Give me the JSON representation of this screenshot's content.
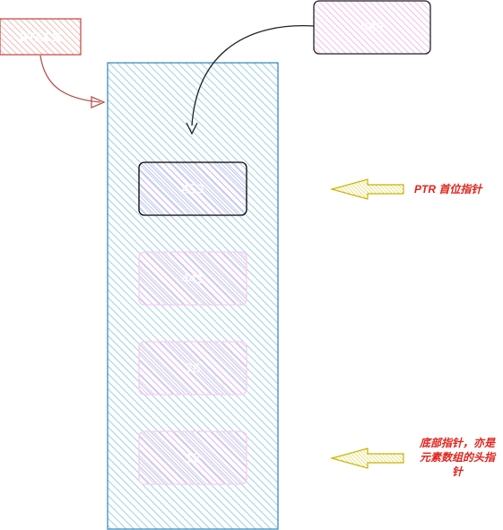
{
  "diagram": {
    "stack_label": "STACK",
    "new_item": "999",
    "stack_items": [
      "459",
      "441",
      "76",
      "12"
    ],
    "top_note": "PTR 首位指针",
    "bottom_note_lines": [
      "底部指针，亦是",
      "元素数组的头指",
      "针"
    ]
  },
  "colors": {
    "stack_label_fill": "#f8cecc",
    "stack_label_stroke": "#b85450",
    "arrow_red": "#b85450",
    "stack_fill": "#a5d6e8",
    "stack_stroke": "#3a8fbf",
    "item_fill": "#e6d0ff",
    "item_pink": "#f6c8f0",
    "item_border_active": "#000000",
    "item_border": "#f4d0f0",
    "pointer_fill": "#e8e060",
    "pointer_stroke": "#c8b400",
    "note_red": "#e0241c"
  }
}
